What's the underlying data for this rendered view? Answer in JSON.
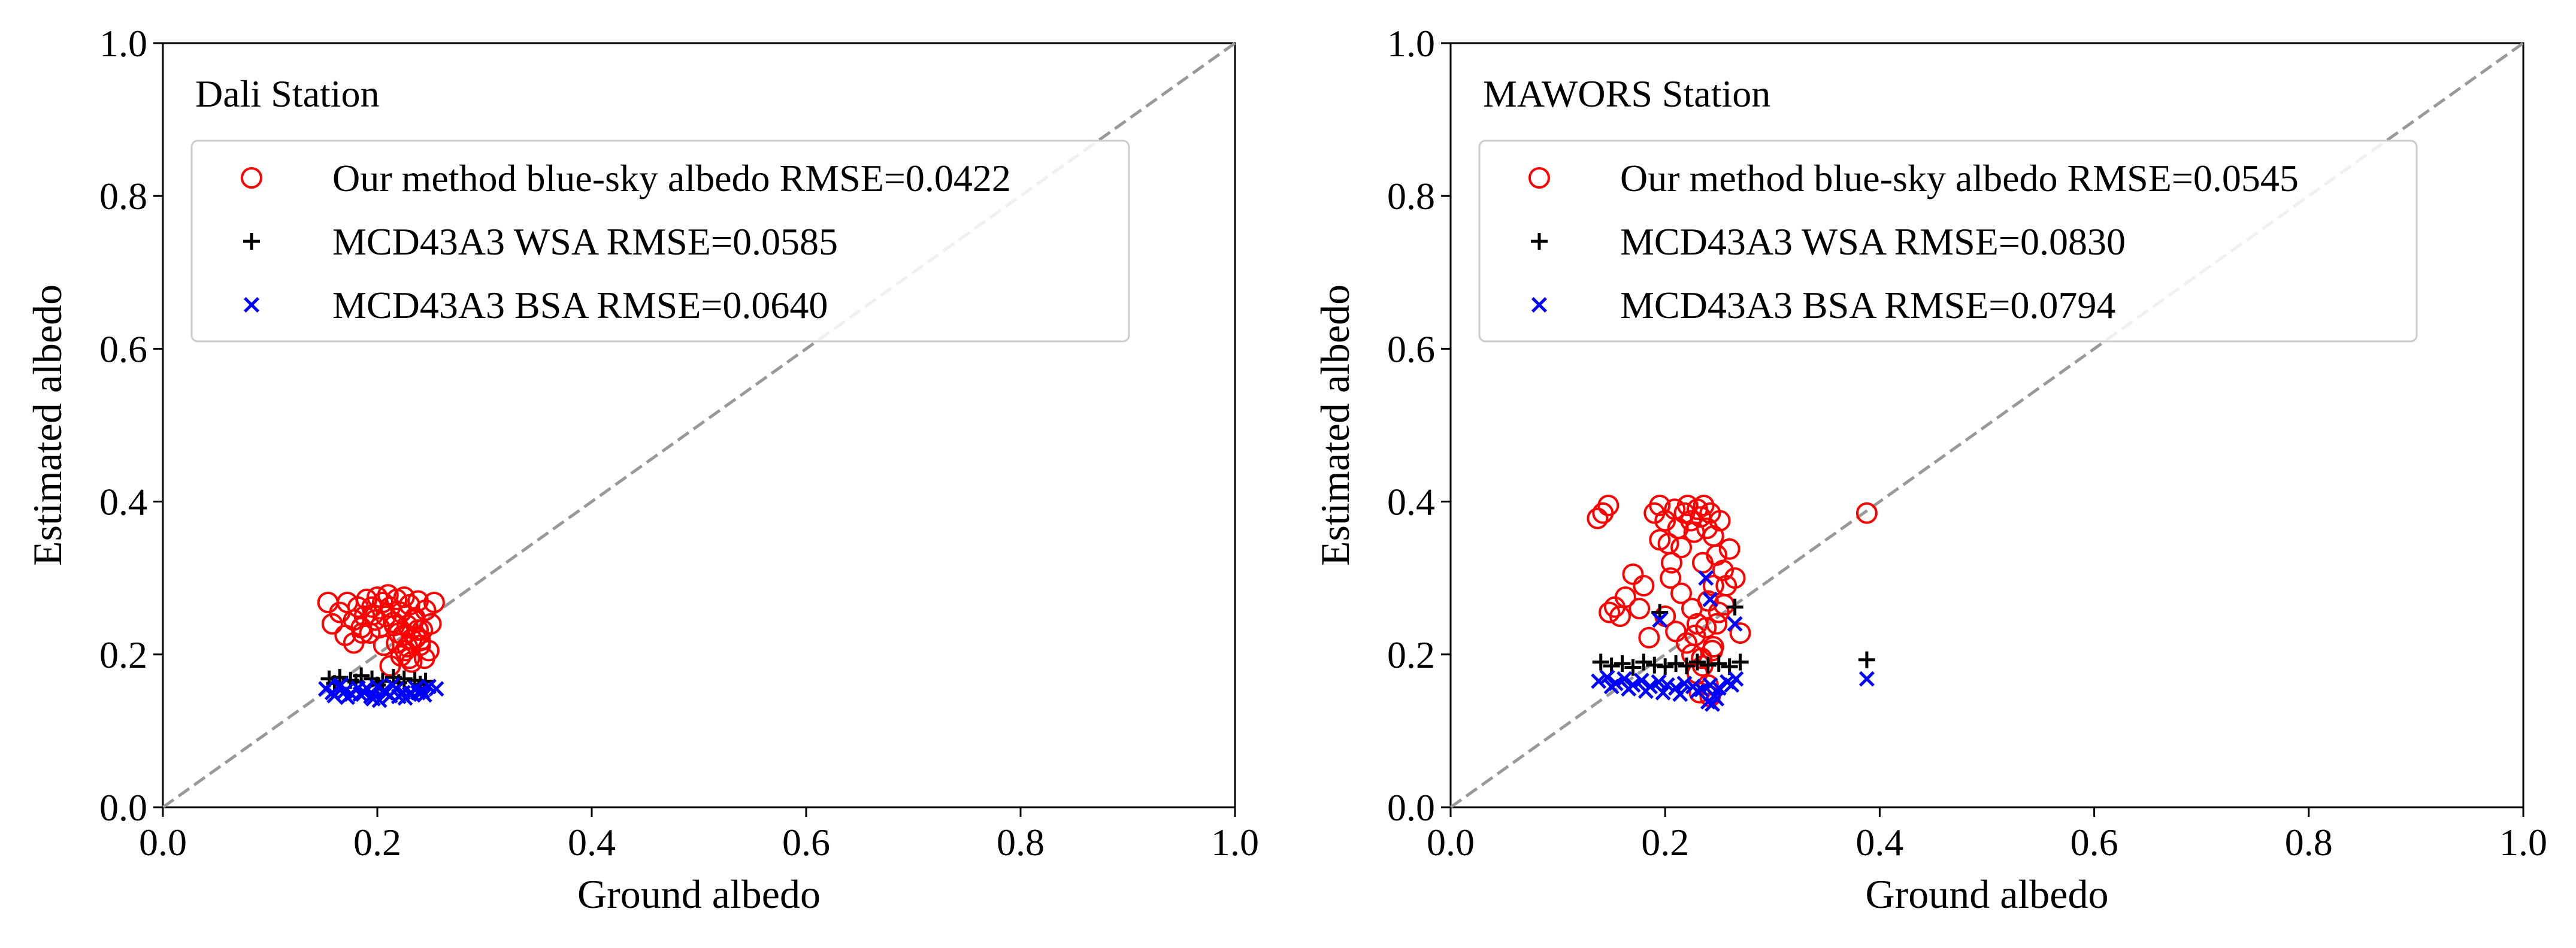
{
  "chart_data": [
    {
      "type": "scatter",
      "title": "Dali Station",
      "xlabel": "Ground albedo",
      "ylabel": "Estimated albedo",
      "xlim": [
        0.0,
        1.0
      ],
      "ylim": [
        0.0,
        1.0
      ],
      "xticks": [
        "0.0",
        "0.2",
        "0.4",
        "0.6",
        "0.8",
        "1.0"
      ],
      "yticks": [
        "0.0",
        "0.2",
        "0.4",
        "0.6",
        "0.8",
        "1.0"
      ],
      "reference_line": "1:1",
      "legend_location": "upper-left",
      "series": [
        {
          "name": "Our method blue-sky albedo RMSE=0.0422",
          "marker": "circle-open",
          "color": "#ff0000",
          "x": [
            0.154,
            0.158,
            0.165,
            0.17,
            0.172,
            0.178,
            0.182,
            0.185,
            0.188,
            0.19,
            0.193,
            0.195,
            0.198,
            0.2,
            0.202,
            0.205,
            0.208,
            0.21,
            0.212,
            0.215,
            0.218,
            0.22,
            0.222,
            0.225,
            0.228,
            0.23,
            0.232,
            0.235,
            0.238,
            0.24,
            0.242,
            0.245,
            0.248,
            0.25,
            0.253,
            0.178,
            0.186,
            0.196,
            0.206,
            0.216,
            0.226,
            0.236,
            0.244,
            0.212,
            0.222,
            0.232,
            0.218,
            0.228,
            0.238,
            0.224,
            0.234,
            0.23,
            0.24
          ],
          "y": [
            0.268,
            0.24,
            0.255,
            0.225,
            0.268,
            0.245,
            0.262,
            0.235,
            0.25,
            0.272,
            0.228,
            0.262,
            0.245,
            0.275,
            0.235,
            0.268,
            0.25,
            0.278,
            0.262,
            0.242,
            0.272,
            0.228,
            0.255,
            0.275,
            0.238,
            0.265,
            0.22,
            0.248,
            0.27,
            0.212,
            0.232,
            0.258,
            0.205,
            0.24,
            0.268,
            0.215,
            0.228,
            0.252,
            0.212,
            0.238,
            0.205,
            0.222,
            0.195,
            0.185,
            0.198,
            0.19,
            0.215,
            0.21,
            0.232,
            0.225,
            0.245,
            0.195,
            0.218
          ]
        },
        {
          "name": "MCD43A3 WSA RMSE=0.0585",
          "marker": "plus",
          "color": "#000000",
          "x": [
            0.155,
            0.165,
            0.175,
            0.185,
            0.195,
            0.205,
            0.215,
            0.225,
            0.235,
            0.245,
            0.16,
            0.18,
            0.2,
            0.22,
            0.24
          ],
          "y": [
            0.168,
            0.17,
            0.166,
            0.172,
            0.168,
            0.165,
            0.17,
            0.168,
            0.166,
            0.165,
            0.162,
            0.164,
            0.16,
            0.163,
            0.161
          ]
        },
        {
          "name": "MCD43A3 BSA RMSE=0.0640",
          "marker": "x",
          "color": "#0000ff",
          "x": [
            0.152,
            0.158,
            0.164,
            0.17,
            0.176,
            0.182,
            0.188,
            0.194,
            0.2,
            0.206,
            0.212,
            0.218,
            0.224,
            0.23,
            0.236,
            0.242,
            0.248,
            0.255,
            0.16,
            0.172,
            0.184,
            0.196,
            0.208,
            0.22,
            0.232,
            0.244,
            0.166,
            0.19,
            0.214,
            0.238,
            0.202,
            0.226
          ],
          "y": [
            0.155,
            0.15,
            0.158,
            0.152,
            0.148,
            0.156,
            0.15,
            0.145,
            0.158,
            0.152,
            0.146,
            0.155,
            0.15,
            0.148,
            0.156,
            0.152,
            0.158,
            0.155,
            0.146,
            0.144,
            0.148,
            0.142,
            0.15,
            0.145,
            0.149,
            0.147,
            0.16,
            0.156,
            0.16,
            0.15,
            0.14,
            0.143
          ]
        }
      ]
    },
    {
      "type": "scatter",
      "title": "MAWORS Station",
      "xlabel": "Ground albedo",
      "ylabel": "Estimated albedo",
      "xlim": [
        0.0,
        1.0
      ],
      "ylim": [
        0.0,
        1.0
      ],
      "xticks": [
        "0.0",
        "0.2",
        "0.4",
        "0.6",
        "0.8",
        "1.0"
      ],
      "yticks": [
        "0.0",
        "0.2",
        "0.4",
        "0.6",
        "0.8",
        "1.0"
      ],
      "reference_line": "1:1",
      "legend_location": "upper-left",
      "series": [
        {
          "name": "Our method blue-sky albedo RMSE=0.0545",
          "marker": "circle-open",
          "color": "#ff0000",
          "x": [
            0.137,
            0.142,
            0.147,
            0.148,
            0.153,
            0.158,
            0.163,
            0.17,
            0.176,
            0.18,
            0.185,
            0.19,
            0.195,
            0.2,
            0.203,
            0.206,
            0.209,
            0.212,
            0.215,
            0.218,
            0.221,
            0.224,
            0.227,
            0.23,
            0.233,
            0.236,
            0.239,
            0.242,
            0.245,
            0.248,
            0.251,
            0.254,
            0.257,
            0.26,
            0.265,
            0.27,
            0.195,
            0.205,
            0.215,
            0.225,
            0.235,
            0.245,
            0.2,
            0.21,
            0.22,
            0.23,
            0.24,
            0.25,
            0.225,
            0.235,
            0.245,
            0.23,
            0.24,
            0.232,
            0.242,
            0.228,
            0.238,
            0.248,
            0.255,
            0.234,
            0.244,
            0.388
          ],
          "y": [
            0.378,
            0.385,
            0.395,
            0.255,
            0.262,
            0.25,
            0.275,
            0.305,
            0.26,
            0.29,
            0.222,
            0.385,
            0.395,
            0.375,
            0.345,
            0.32,
            0.39,
            0.365,
            0.34,
            0.385,
            0.395,
            0.375,
            0.36,
            0.39,
            0.38,
            0.395,
            0.365,
            0.385,
            0.355,
            0.33,
            0.375,
            0.31,
            0.29,
            0.338,
            0.3,
            0.228,
            0.35,
            0.3,
            0.28,
            0.26,
            0.32,
            0.29,
            0.25,
            0.23,
            0.215,
            0.24,
            0.27,
            0.255,
            0.2,
            0.185,
            0.21,
            0.175,
            0.16,
            0.15,
            0.145,
            0.225,
            0.235,
            0.24,
            0.265,
            0.195,
            0.205,
            0.385
          ]
        },
        {
          "name": "MCD43A3 WSA RMSE=0.0830",
          "marker": "plus",
          "color": "#000000",
          "x": [
            0.14,
            0.15,
            0.16,
            0.17,
            0.18,
            0.19,
            0.2,
            0.21,
            0.22,
            0.23,
            0.24,
            0.25,
            0.26,
            0.27,
            0.195,
            0.265,
            0.388
          ],
          "y": [
            0.19,
            0.185,
            0.188,
            0.183,
            0.19,
            0.186,
            0.184,
            0.188,
            0.185,
            0.19,
            0.186,
            0.188,
            0.184,
            0.19,
            0.255,
            0.262,
            0.193
          ]
        },
        {
          "name": "MCD43A3 BSA RMSE=0.0794",
          "marker": "x",
          "color": "#0000ff",
          "x": [
            0.138,
            0.146,
            0.154,
            0.162,
            0.17,
            0.178,
            0.186,
            0.194,
            0.202,
            0.21,
            0.218,
            0.226,
            0.234,
            0.242,
            0.25,
            0.258,
            0.266,
            0.15,
            0.166,
            0.182,
            0.198,
            0.214,
            0.23,
            0.246,
            0.262,
            0.24,
            0.244,
            0.248,
            0.242,
            0.238,
            0.195,
            0.265,
            0.388
          ],
          "y": [
            0.165,
            0.17,
            0.162,
            0.168,
            0.16,
            0.166,
            0.158,
            0.164,
            0.16,
            0.156,
            0.162,
            0.158,
            0.154,
            0.16,
            0.156,
            0.164,
            0.168,
            0.158,
            0.155,
            0.152,
            0.15,
            0.148,
            0.152,
            0.145,
            0.16,
            0.138,
            0.135,
            0.142,
            0.272,
            0.3,
            0.245,
            0.24,
            0.168
          ]
        }
      ]
    }
  ]
}
